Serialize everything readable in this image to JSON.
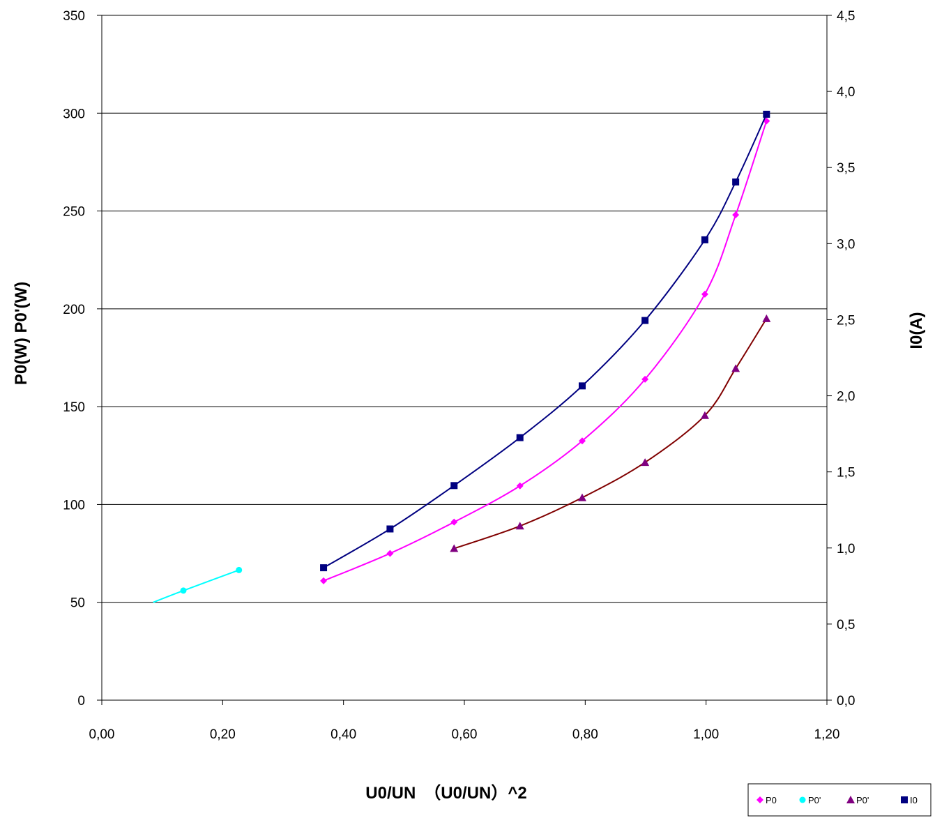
{
  "chart_data": {
    "type": "line",
    "xlabel": "U0/UN　（U0/UN）^2",
    "ylabel_left": "P0(W)  P0'(W)",
    "ylabel_right": "I0(A)",
    "xlim": [
      0,
      1.2
    ],
    "ylim_left": [
      0,
      350
    ],
    "ylim_right": [
      0,
      4.5
    ],
    "x_ticks": [
      "0,00",
      "0,20",
      "0,40",
      "0,60",
      "0,80",
      "1,00",
      "1,20"
    ],
    "x_tick_values": [
      0,
      0.2,
      0.4,
      0.6,
      0.8,
      1.0,
      1.2
    ],
    "y_left_ticks": [
      "0",
      "50",
      "100",
      "150",
      "200",
      "250",
      "300",
      "350"
    ],
    "y_left_tick_values": [
      0,
      50,
      100,
      150,
      200,
      250,
      300,
      350
    ],
    "y_right_ticks": [
      "0,0",
      "0,5",
      "1,0",
      "1,5",
      "2,0",
      "2,5",
      "3,0",
      "3,5",
      "4,0",
      "4,5"
    ],
    "y_right_tick_values": [
      0,
      0.5,
      1.0,
      1.5,
      2.0,
      2.5,
      3.0,
      3.5,
      4.0,
      4.5
    ],
    "grid": "horizontal",
    "legend_position": "bottom-right",
    "series": [
      {
        "name": "P0",
        "axis": "left",
        "color": "#ff00ff",
        "marker": "diamond",
        "x": [
          0.367,
          0.477,
          0.583,
          0.692,
          0.795,
          0.899,
          0.998,
          1.049,
          1.1
        ],
        "y": [
          61,
          75,
          91,
          109.5,
          132.5,
          164,
          207.5,
          248,
          296
        ]
      },
      {
        "name": "P0'",
        "axis": "left",
        "color": "#00ffff",
        "marker": "circle",
        "x": [
          0.085,
          0.135,
          0.227
        ],
        "y": [
          50,
          56,
          66.5
        ],
        "line_start_x": 0.085
      },
      {
        "name": "P0'",
        "axis": "left",
        "color": "#800000",
        "marker_color": "#800080",
        "marker": "triangle",
        "x": [
          0.583,
          0.692,
          0.795,
          0.899,
          0.998,
          1.049,
          1.1
        ],
        "y": [
          77.5,
          89,
          103.5,
          121.5,
          145.5,
          169.5,
          195
        ]
      },
      {
        "name": "I0",
        "axis": "right",
        "color": "#000080",
        "marker": "square",
        "x": [
          0.367,
          0.477,
          0.583,
          0.692,
          0.795,
          0.899,
          0.998,
          1.049,
          1.1
        ],
        "y": [
          0.87,
          1.125,
          1.41,
          1.725,
          2.065,
          2.495,
          3.025,
          3.405,
          3.85
        ]
      }
    ]
  }
}
